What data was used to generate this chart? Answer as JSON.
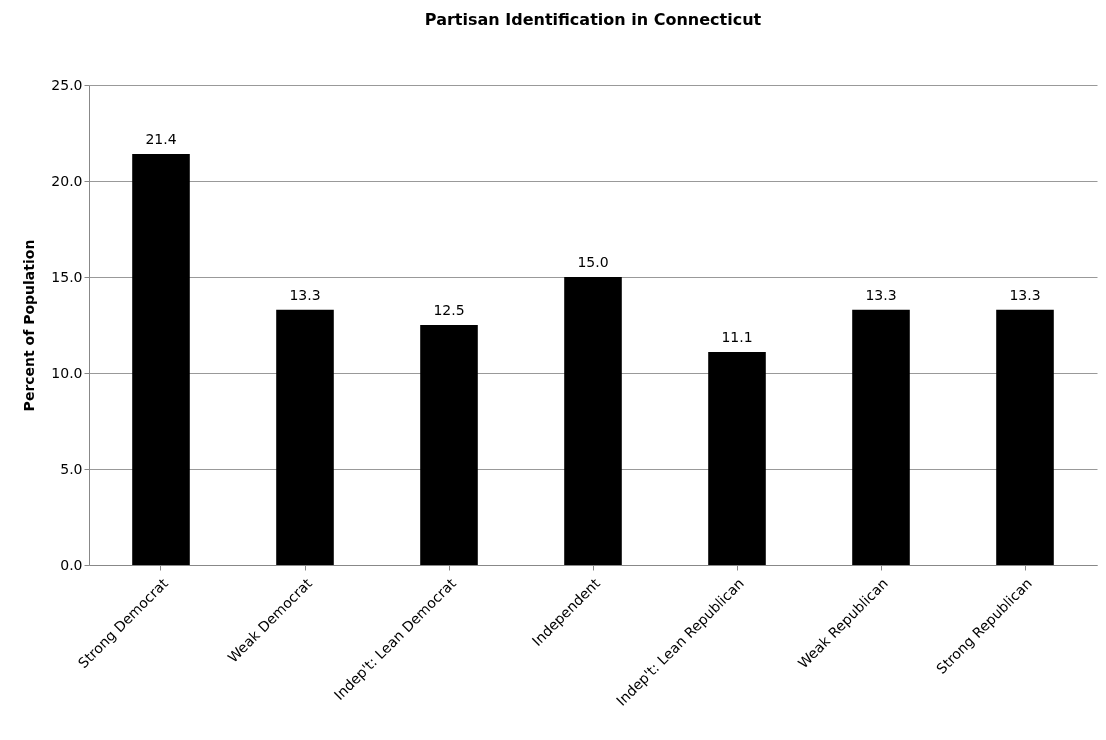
{
  "chart_data": {
    "type": "bar",
    "title": "Partisan Identification in Connecticut",
    "ylabel": "Percent of Population",
    "categories": [
      "Strong Democrat",
      "Weak Democrat",
      "Indep't: Lean Democrat",
      "Independent",
      "Indep't: Lean Republican",
      "Weak Republican",
      "Strong Republican"
    ],
    "values": [
      21.4,
      13.3,
      12.5,
      15.0,
      11.1,
      13.3,
      13.3
    ],
    "value_labels": [
      "21.4",
      "13.3",
      "12.5",
      "15.0",
      "11.1",
      "13.3",
      "13.3"
    ],
    "color": "#000000",
    "ylim": [
      0,
      25
    ],
    "yticks": [
      {
        "value": 0,
        "label": "0.0"
      },
      {
        "value": 5,
        "label": "5.0"
      },
      {
        "value": 10,
        "label": "10.0"
      },
      {
        "value": 15,
        "label": "15.0"
      },
      {
        "value": 20,
        "label": "20.0"
      },
      {
        "value": 25,
        "label": "25.0"
      }
    ],
    "grid": "y"
  }
}
